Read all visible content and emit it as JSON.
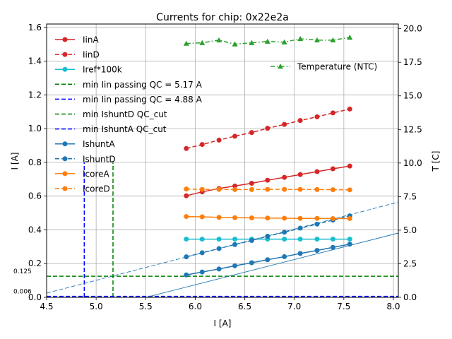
{
  "chart_data": {
    "type": "line",
    "title": "Currents for chip: 0x22e2a",
    "xlabel": "I [A]",
    "ylabel": "I [A]",
    "y2label": "T [C]",
    "xlim": [
      4.5,
      8.05
    ],
    "ylim": [
      0.0,
      1.62
    ],
    "y2lim": [
      0.0,
      20.35
    ],
    "grid": true,
    "legend_position": "upper-left",
    "xticks": [
      4.5,
      5.0,
      5.5,
      6.0,
      6.5,
      7.0,
      7.5,
      8.0
    ],
    "xtick_labels": [
      "4.5",
      "5.0",
      "5.5",
      "6.0",
      "6.5",
      "7.0",
      "7.5",
      "8.0"
    ],
    "yticks": [
      0.0,
      0.2,
      0.4,
      0.6,
      0.8,
      1.0,
      1.2,
      1.4,
      1.6
    ],
    "ytick_labels": [
      "0.0",
      "0.2",
      "0.4",
      "0.6",
      "0.8",
      "1.0",
      "1.2",
      "1.4",
      "1.6"
    ],
    "y2ticks": [
      0.0,
      2.5,
      5.0,
      7.5,
      10.0,
      12.5,
      15.0,
      17.5,
      20.0
    ],
    "y2tick_labels": [
      "0.0",
      "2.5",
      "5.0",
      "7.5",
      "10.0",
      "12.5",
      "15.0",
      "17.5",
      "20.0"
    ],
    "x": [
      5.91,
      6.07,
      6.24,
      6.4,
      6.57,
      6.73,
      6.9,
      7.06,
      7.23,
      7.39,
      7.56
    ],
    "series": [
      {
        "name": "IinA",
        "color": "#d62728",
        "style": "solid",
        "marker": "circle",
        "values": [
          0.602,
          0.625,
          0.645,
          0.66,
          0.676,
          0.694,
          0.711,
          0.728,
          0.745,
          0.762,
          0.778
        ]
      },
      {
        "name": "IinD",
        "color": "#d62728",
        "style": "dashed",
        "marker": "circle",
        "values": [
          0.882,
          0.906,
          0.932,
          0.955,
          0.977,
          1.002,
          1.025,
          1.048,
          1.07,
          1.093,
          1.116
        ]
      },
      {
        "name": "Iref*100k",
        "color": "#17becf",
        "style": "solid",
        "marker": "circle",
        "values": [
          0.345,
          0.345,
          0.345,
          0.345,
          0.345,
          0.345,
          0.345,
          0.345,
          0.345,
          0.345,
          0.345
        ]
      },
      {
        "name": "IshuntA",
        "color": "#1f77b4",
        "style": "solid",
        "marker": "circle",
        "values": [
          0.133,
          0.15,
          0.168,
          0.187,
          0.205,
          0.223,
          0.241,
          0.26,
          0.278,
          0.296,
          0.315
        ]
      },
      {
        "name": "IshuntD",
        "color": "#1f77b4",
        "style": "dashed",
        "marker": "circle",
        "values": [
          0.24,
          0.264,
          0.289,
          0.313,
          0.337,
          0.362,
          0.386,
          0.41,
          0.434,
          0.458,
          0.483
        ]
      },
      {
        "name": "IcoreA",
        "color": "#ff7f0e",
        "style": "solid",
        "marker": "circle",
        "values": [
          0.479,
          0.477,
          0.474,
          0.472,
          0.471,
          0.47,
          0.469,
          0.468,
          0.468,
          0.467,
          0.467
        ]
      },
      {
        "name": "IcoreD",
        "color": "#ff7f0e",
        "style": "dashed",
        "marker": "circle",
        "values": [
          0.642,
          0.64,
          0.64,
          0.639,
          0.639,
          0.64,
          0.64,
          0.64,
          0.639,
          0.638,
          0.637
        ]
      }
    ],
    "temperature_series": {
      "name": "Temperature (NTC)",
      "color": "#2ca02c",
      "style": "dashdot",
      "marker": "triangle",
      "axis": "right",
      "values": [
        18.9,
        18.95,
        19.15,
        18.85,
        18.95,
        19.05,
        19.0,
        19.25,
        19.15,
        19.15,
        19.35
      ]
    },
    "fit_lines": [
      {
        "name": "IshuntA fit",
        "color": "#1f77b4",
        "style": "solid",
        "x": [
          4.5,
          8.05
        ],
        "y": [
          -0.15,
          0.381
        ]
      },
      {
        "name": "IshuntD fit",
        "color": "#1f77b4",
        "style": "dashed",
        "x": [
          4.5,
          8.05
        ],
        "y": [
          0.025,
          0.564
        ]
      }
    ],
    "threshold_lines": [
      {
        "name": "min Iin passing QC = 5.17 A",
        "color": "#008000",
        "orientation": "vertical",
        "value": 5.17,
        "y_range": [
          0.0,
          0.8
        ]
      },
      {
        "name": "min Iin passing QC = 4.88 A",
        "color": "#0000ff",
        "orientation": "vertical",
        "value": 4.88,
        "y_range": [
          0.0,
          0.8
        ]
      },
      {
        "name": "min IshuntD QC_cut",
        "color": "#008000",
        "orientation": "horizontal",
        "value": 0.125
      },
      {
        "name": "min IshuntA QC_cut",
        "color": "#0000ff",
        "orientation": "horizontal",
        "value": 0.006
      }
    ],
    "annotations": [
      {
        "text": "0.125",
        "y": 0.125
      },
      {
        "text": "0.006",
        "y": 0.006
      }
    ],
    "legend": [
      {
        "label": "IinA",
        "color": "#d62728",
        "style": "solid",
        "marker": "circle"
      },
      {
        "label": "IinD",
        "color": "#d62728",
        "style": "dashed",
        "marker": "circle"
      },
      {
        "label": "Iref*100k",
        "color": "#17becf",
        "style": "solid",
        "marker": "circle"
      },
      {
        "label": "min Iin passing QC = 5.17 A",
        "color": "#008000",
        "style": "dashed",
        "marker": "none"
      },
      {
        "label": "min Iin passing QC = 4.88 A",
        "color": "#0000ff",
        "style": "dashed",
        "marker": "none"
      },
      {
        "label": "min IshuntD QC_cut",
        "color": "#008000",
        "style": "dashed",
        "marker": "none"
      },
      {
        "label": "min IshuntA QC_cut",
        "color": "#0000ff",
        "style": "dashed",
        "marker": "none"
      },
      {
        "label": "IshuntA",
        "color": "#1f77b4",
        "style": "solid",
        "marker": "circle"
      },
      {
        "label": "IshuntD",
        "color": "#1f77b4",
        "style": "dashed",
        "marker": "circle"
      },
      {
        "label": "IcoreA",
        "color": "#ff7f0e",
        "style": "solid",
        "marker": "circle"
      },
      {
        "label": "IcoreD",
        "color": "#ff7f0e",
        "style": "dashed",
        "marker": "circle"
      }
    ],
    "legend2": [
      {
        "label": "Temperature (NTC)",
        "color": "#2ca02c",
        "style": "dashdot",
        "marker": "triangle"
      }
    ]
  }
}
